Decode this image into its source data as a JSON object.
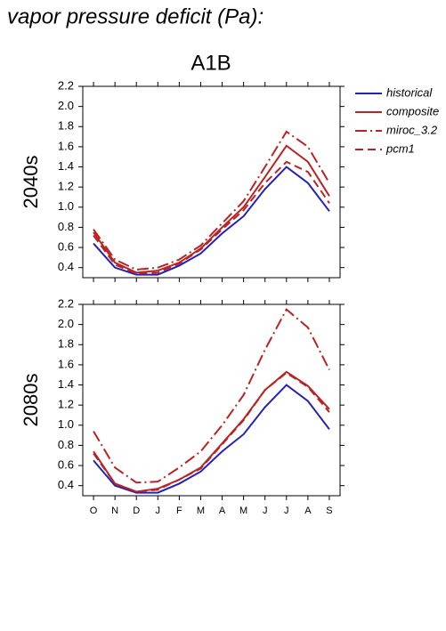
{
  "page_title": "vapor pressure deficit (Pa):",
  "chart_data": [
    {
      "type": "line",
      "title": "A1B",
      "ylabel": "2040s",
      "ylim": [
        0.3,
        2.2
      ],
      "yticks": [
        0.4,
        0.6,
        0.8,
        {
          "value": 1.0,
          "label": "1.0"
        },
        1.2,
        1.4,
        1.6,
        1.8,
        {
          "value": 2.0,
          "label": "2.0"
        },
        2.2
      ],
      "series": [
        {
          "name": "historical",
          "color": "#2222bb",
          "linestyle": "solid",
          "values": [
            0.64,
            0.4,
            0.33,
            0.33,
            0.42,
            0.54,
            0.74,
            0.91,
            1.18,
            1.4,
            1.24,
            0.96
          ]
        },
        {
          "name": "composite",
          "color": "#bb2222",
          "linestyle": "solid",
          "values": [
            0.75,
            0.45,
            0.35,
            0.37,
            0.45,
            0.59,
            0.8,
            1.0,
            1.3,
            1.61,
            1.45,
            1.11
          ]
        },
        {
          "name": "miroc_3.2",
          "color": "#bb2222",
          "linestyle": "dashdot",
          "values": [
            0.78,
            0.48,
            0.38,
            0.4,
            0.48,
            0.62,
            0.84,
            1.06,
            1.4,
            1.75,
            1.6,
            1.24
          ]
        },
        {
          "name": "pcm1",
          "color": "#bb2222",
          "linestyle": "dashed",
          "values": [
            0.72,
            0.43,
            0.34,
            0.35,
            0.44,
            0.58,
            0.78,
            0.97,
            1.24,
            1.45,
            1.35,
            1.04
          ]
        }
      ]
    },
    {
      "type": "line",
      "ylabel": "2080s",
      "categories": [
        "O",
        "N",
        "D",
        "J",
        "F",
        "M",
        "A",
        "M",
        "J",
        "J",
        "A",
        "S"
      ],
      "ylim": [
        0.3,
        2.2
      ],
      "yticks": [
        0.4,
        0.6,
        0.8,
        {
          "value": 1.0,
          "label": "1.0"
        },
        1.2,
        1.4,
        1.6,
        1.8,
        {
          "value": 2.0,
          "label": "2.0"
        },
        2.2
      ],
      "series": [
        {
          "name": "historical",
          "color": "#2222bb",
          "linestyle": "solid",
          "values": [
            0.65,
            0.4,
            0.33,
            0.33,
            0.42,
            0.54,
            0.74,
            0.91,
            1.18,
            1.4,
            1.24,
            0.96
          ]
        },
        {
          "name": "composite",
          "color": "#bb2222",
          "linestyle": "solid",
          "values": [
            0.74,
            0.42,
            0.34,
            0.37,
            0.46,
            0.58,
            0.82,
            1.06,
            1.35,
            1.53,
            1.39,
            1.16
          ]
        },
        {
          "name": "miroc_3.2",
          "color": "#bb2222",
          "linestyle": "dashdot",
          "values": [
            0.94,
            0.58,
            0.43,
            0.44,
            0.58,
            0.74,
            1.0,
            1.3,
            1.75,
            2.15,
            1.97,
            1.55
          ]
        },
        {
          "name": "pcm1",
          "color": "#bb2222",
          "linestyle": "dashed",
          "values": [
            0.72,
            0.42,
            0.34,
            0.36,
            0.46,
            0.57,
            0.81,
            1.05,
            1.35,
            1.52,
            1.38,
            1.13
          ]
        }
      ]
    }
  ]
}
